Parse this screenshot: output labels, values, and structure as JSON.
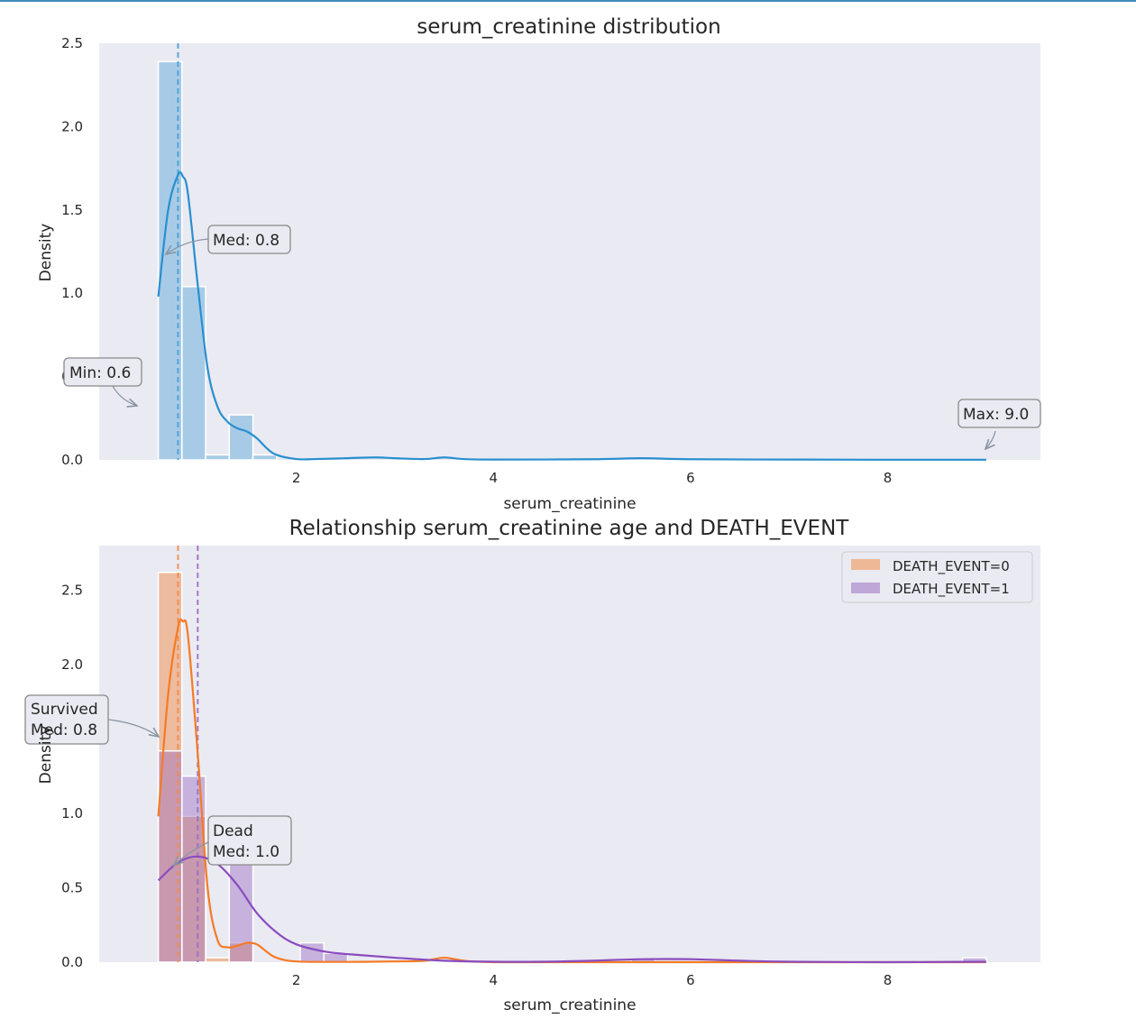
{
  "chart_data": [
    {
      "type": "histogram",
      "title": "serum_creatinine distribution",
      "xlabel": "serum_creatinine",
      "ylabel": "Density",
      "xlim": [
        0.0,
        9.55
      ],
      "ylim": [
        0,
        2.5
      ],
      "xticks": [
        2,
        4,
        6,
        8
      ],
      "yticks": [
        0.0,
        0.5,
        1.0,
        1.5,
        2.0,
        2.5
      ],
      "grid": false,
      "color": "#4a9fd5",
      "bin_width": 0.24,
      "bins": [
        {
          "x0": 0.6,
          "x1": 0.84,
          "density": 2.39
        },
        {
          "x0": 0.84,
          "x1": 1.08,
          "density": 1.04
        },
        {
          "x0": 1.08,
          "x1": 1.32,
          "density": 0.03
        },
        {
          "x0": 1.32,
          "x1": 1.56,
          "density": 0.27
        },
        {
          "x0": 1.56,
          "x1": 1.8,
          "density": 0.03
        }
      ],
      "kde": {
        "x": [
          0.6,
          0.7,
          0.8,
          0.85,
          0.9,
          1.0,
          1.1,
          1.2,
          1.3,
          1.4,
          1.5,
          1.6,
          1.7,
          1.8,
          2.0,
          2.2,
          2.5,
          2.8,
          3.0,
          3.3,
          3.5,
          3.7,
          4.0,
          5.0,
          5.5,
          6.0,
          7.0,
          8.0,
          9.0
        ],
        "y": [
          0.98,
          1.5,
          1.71,
          1.7,
          1.6,
          1.05,
          0.55,
          0.32,
          0.23,
          0.19,
          0.17,
          0.13,
          0.07,
          0.03,
          0.005,
          0.005,
          0.01,
          0.015,
          0.01,
          0.005,
          0.015,
          0.005,
          0.002,
          0.004,
          0.01,
          0.004,
          0.002,
          0.001,
          0.001
        ]
      },
      "median": 0.8,
      "annotations": [
        {
          "label": "Med: 0.8",
          "x": 0.8
        },
        {
          "label": "Min: 0.6",
          "x": 0.6
        },
        {
          "label": "Max: 9.0",
          "x": 9.0
        }
      ]
    },
    {
      "type": "histogram",
      "title": "Relationship serum_creatinine age and DEATH_EVENT",
      "xlabel": "serum_creatinine",
      "ylabel": "Density",
      "xlim": [
        0.0,
        9.55
      ],
      "ylim": [
        0,
        2.8
      ],
      "xticks": [
        2,
        4,
        6,
        8
      ],
      "yticks": [
        0.0,
        0.5,
        1.0,
        1.5,
        2.0,
        2.5
      ],
      "grid": false,
      "legend": "top-right",
      "bin_width": 0.24,
      "series": [
        {
          "name": "DEATH_EVENT=0",
          "color": "#f08c4a",
          "median": 0.8,
          "bins": [
            {
              "x0": 0.6,
              "x1": 0.84,
              "density": 2.62
            },
            {
              "x0": 0.84,
              "x1": 1.08,
              "density": 0.98
            },
            {
              "x0": 1.08,
              "x1": 1.32,
              "density": 0.03
            },
            {
              "x0": 1.32,
              "x1": 1.56,
              "density": 0.13
            }
          ],
          "kde": {
            "x": [
              0.6,
              0.7,
              0.8,
              0.85,
              0.9,
              1.0,
              1.1,
              1.2,
              1.3,
              1.4,
              1.5,
              1.6,
              1.7,
              1.8,
              2.0,
              2.5,
              3.0,
              3.3,
              3.5,
              3.7,
              4.0,
              5.0,
              6.0,
              9.0
            ],
            "y": [
              0.98,
              1.8,
              2.25,
              2.29,
              2.2,
              1.4,
              0.5,
              0.15,
              0.1,
              0.11,
              0.13,
              0.12,
              0.07,
              0.03,
              0.005,
              0.002,
              0.005,
              0.01,
              0.03,
              0.01,
              0.0,
              0.0,
              0.0,
              0.0
            ]
          }
        },
        {
          "name": "DEATH_EVENT=1",
          "color": "#9b6fc3",
          "median": 1.0,
          "bins": [
            {
              "x0": 0.6,
              "x1": 0.84,
              "density": 1.42
            },
            {
              "x0": 0.84,
              "x1": 1.08,
              "density": 1.25
            },
            {
              "x0": 1.32,
              "x1": 1.56,
              "density": 0.77
            },
            {
              "x0": 2.04,
              "x1": 2.28,
              "density": 0.13
            },
            {
              "x0": 2.28,
              "x1": 2.52,
              "density": 0.06
            },
            {
              "x0": 5.4,
              "x1": 5.64,
              "density": 0.02
            },
            {
              "x0": 8.76,
              "x1": 9.0,
              "density": 0.03
            }
          ],
          "kde": {
            "x": [
              0.6,
              0.8,
              1.0,
              1.2,
              1.4,
              1.6,
              1.8,
              2.0,
              2.3,
              2.6,
              3.0,
              3.5,
              4.0,
              4.5,
              5.0,
              5.5,
              6.0,
              6.5,
              7.0,
              8.0,
              9.0
            ],
            "y": [
              0.55,
              0.67,
              0.71,
              0.66,
              0.52,
              0.33,
              0.2,
              0.12,
              0.07,
              0.05,
              0.03,
              0.01,
              0.003,
              0.003,
              0.01,
              0.02,
              0.02,
              0.01,
              0.003,
              0.0,
              0.003
            ]
          }
        }
      ],
      "annotations": [
        {
          "label": "Survived\nMed: 0.8",
          "x": 0.8
        },
        {
          "label": "Dead\nMed: 1.0",
          "x": 1.0
        }
      ]
    }
  ]
}
